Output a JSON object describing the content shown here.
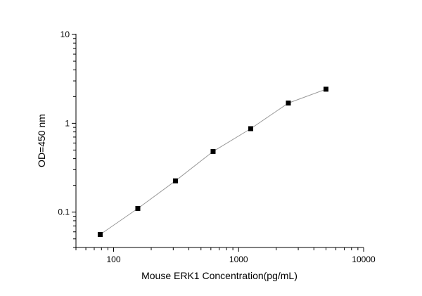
{
  "chart_data": {
    "type": "line",
    "title": "",
    "xlabel": "Mouse ERK1 Concentration(pg/mL)",
    "ylabel": "OD=450 nm",
    "xscale": "log",
    "yscale": "log",
    "xlim": [
      50,
      10000
    ],
    "ylim": [
      0.04,
      10
    ],
    "xticks": [
      100,
      1000,
      10000
    ],
    "xtick_labels": [
      "100",
      "1000",
      "10000"
    ],
    "yticks": [
      0.1,
      1,
      10
    ],
    "ytick_labels": [
      "0.1",
      "1",
      "10"
    ],
    "grid": false,
    "series": [
      {
        "x": [
          78.125,
          156.25,
          312.5,
          625,
          1250,
          2500,
          5000
        ],
        "y": [
          0.056,
          0.11,
          0.225,
          0.482,
          0.87,
          1.69,
          2.42
        ],
        "marker": "square",
        "marker_color": "#000000",
        "line_color": "#999999"
      }
    ]
  }
}
